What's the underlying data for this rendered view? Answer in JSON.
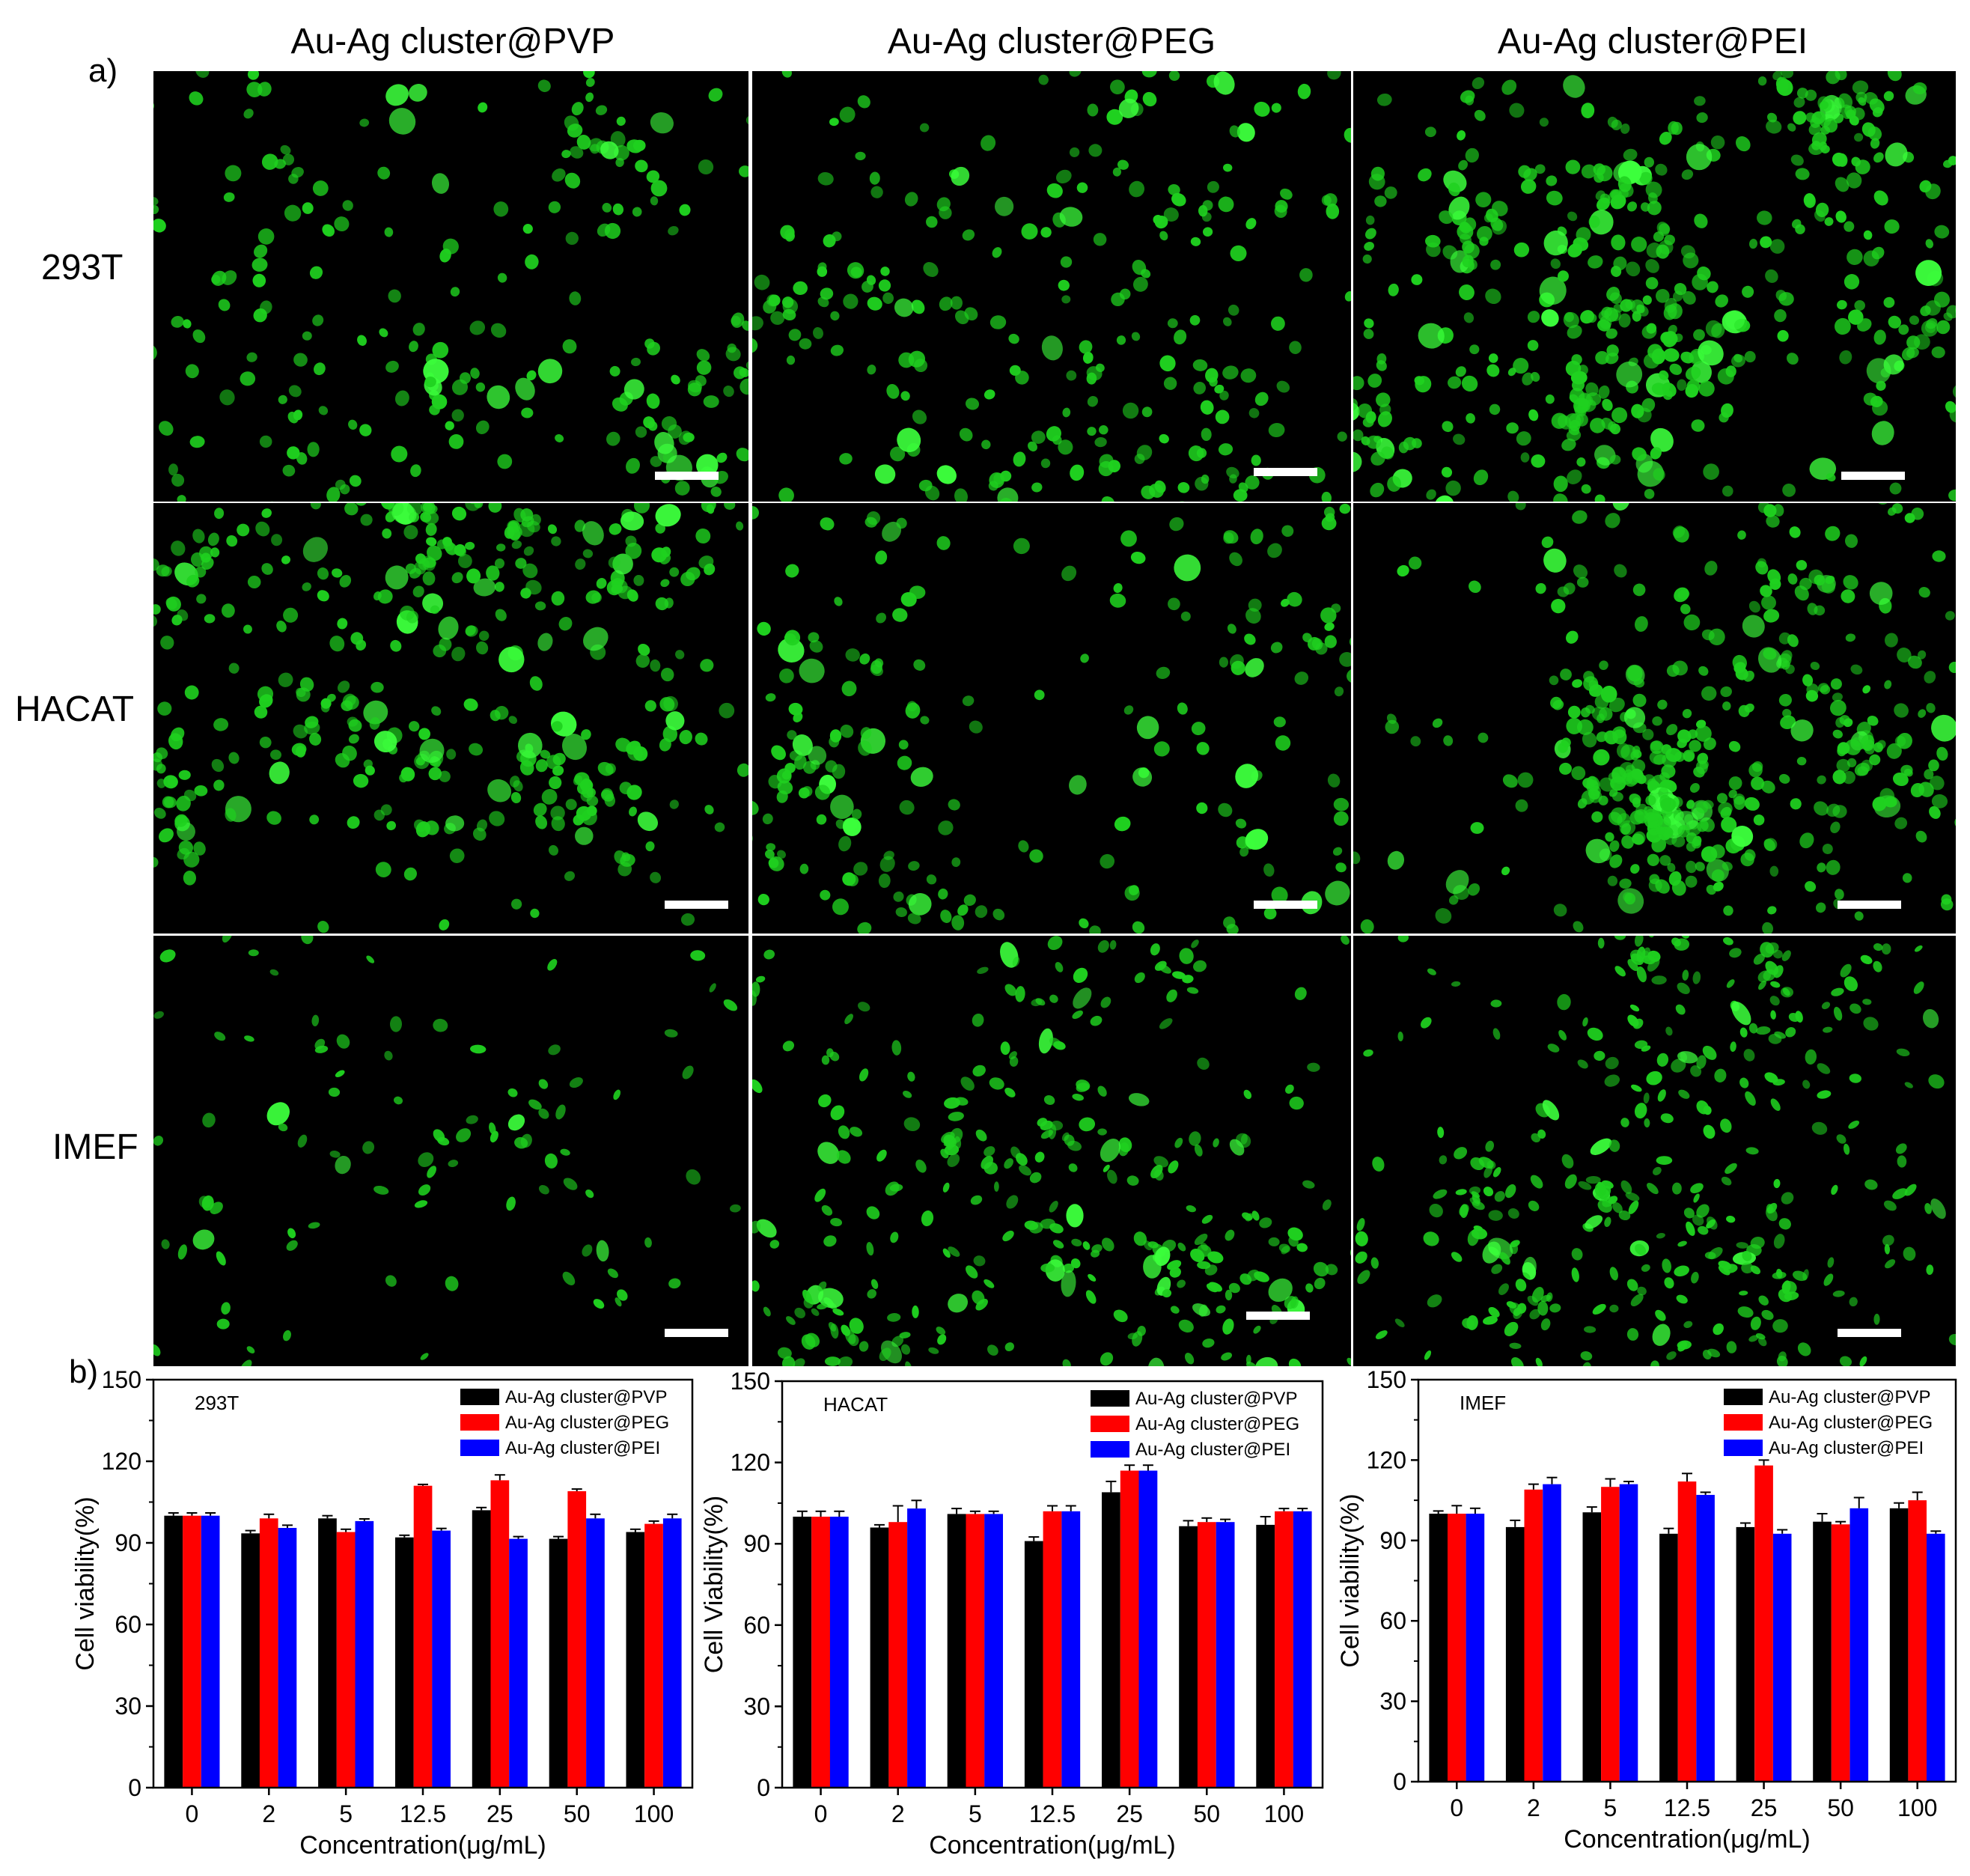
{
  "panel_a_label": "a)",
  "panel_b_label": "b)",
  "columns": [
    "Au-Ag cluster@PVP",
    "Au-Ag cluster@PEG",
    "Au-Ag cluster@PEI"
  ],
  "rows": [
    "293T",
    "HACAT",
    "IMEF"
  ],
  "colors": {
    "micro_bg": "#000000",
    "cell_green": "#1fd11f",
    "cell_bright": "#3cff3c",
    "scale_bar": "#ffffff"
  },
  "chart_data": [
    {
      "type": "bar",
      "title": "293T",
      "xlabel": "Concentration(μg/mL)",
      "ylabel": "Cell viability(%)",
      "categories": [
        "0",
        "2",
        "5",
        "12.5",
        "25",
        "50",
        "100"
      ],
      "ylim": [
        0,
        150
      ],
      "yticks": [
        0,
        30,
        60,
        90,
        120,
        150
      ],
      "legend_position": "top-right",
      "series": [
        {
          "name": "Au-Ag cluster@PVP",
          "color": "#000000",
          "values": [
            100,
            93.5,
            99,
            92,
            102,
            91.5,
            94
          ],
          "errors": [
            1,
            1,
            1,
            0.8,
            1,
            0.8,
            1
          ]
        },
        {
          "name": "Au-Ag cluster@PEG",
          "color": "#ff0000",
          "values": [
            100,
            99,
            94,
            111,
            113,
            109,
            97
          ],
          "errors": [
            1,
            1.5,
            1,
            0.5,
            2,
            0.8,
            1
          ]
        },
        {
          "name": "Au-Ag cluster@PEI",
          "color": "#0000ff",
          "values": [
            100,
            95.5,
            98,
            94.5,
            91.5,
            99,
            99
          ],
          "errors": [
            1,
            1,
            0.8,
            0.8,
            0.8,
            1.5,
            1.5
          ]
        }
      ]
    },
    {
      "type": "bar",
      "title": "HACAT",
      "xlabel": "Concentration(μg/mL)",
      "ylabel": "Cell Viability(%)",
      "categories": [
        "0",
        "2",
        "5",
        "12.5",
        "25",
        "50",
        "100"
      ],
      "ylim": [
        0,
        150
      ],
      "yticks": [
        0,
        30,
        60,
        90,
        120,
        150
      ],
      "legend_position": "top-right",
      "series": [
        {
          "name": "Au-Ag cluster@PVP",
          "color": "#000000",
          "values": [
            100,
            96,
            101,
            91,
            109,
            96.5,
            97
          ],
          "errors": [
            2,
            1,
            2,
            1.5,
            4,
            2,
            3
          ]
        },
        {
          "name": "Au-Ag cluster@PEG",
          "color": "#ff0000",
          "values": [
            100,
            98,
            101,
            102,
            117,
            98,
            102
          ],
          "errors": [
            2,
            6,
            1,
            2,
            2,
            1.5,
            1
          ]
        },
        {
          "name": "Au-Ag cluster@PEI",
          "color": "#0000ff",
          "values": [
            100,
            103,
            101,
            102,
            117,
            98,
            102
          ],
          "errors": [
            2,
            3,
            1,
            2,
            2,
            1,
            1
          ]
        }
      ]
    },
    {
      "type": "bar",
      "title": "IMEF",
      "xlabel": "Concentration(μg/mL)",
      "ylabel": "Cell viability(%)",
      "categories": [
        "0",
        "2",
        "5",
        "12.5",
        "25",
        "50",
        "100"
      ],
      "ylim": [
        0,
        150
      ],
      "yticks": [
        0,
        30,
        60,
        90,
        120,
        150
      ],
      "legend_position": "top-right",
      "series": [
        {
          "name": "Au-Ag cluster@PVP",
          "color": "#000000",
          "values": [
            100,
            95,
            100.5,
            92.5,
            95,
            97,
            102
          ],
          "errors": [
            1,
            2.5,
            2,
            2,
            1.5,
            3,
            2
          ]
        },
        {
          "name": "Au-Ag cluster@PEG",
          "color": "#ff0000",
          "values": [
            100,
            109,
            110,
            112,
            118,
            96,
            105
          ],
          "errors": [
            3,
            2,
            3,
            3,
            2,
            1,
            3
          ]
        },
        {
          "name": "Au-Ag cluster@PEI",
          "color": "#0000ff",
          "values": [
            100,
            111,
            111,
            107,
            92.5,
            102,
            92.5
          ],
          "errors": [
            2,
            2.5,
            1,
            1,
            1.5,
            4,
            1
          ]
        }
      ]
    }
  ]
}
